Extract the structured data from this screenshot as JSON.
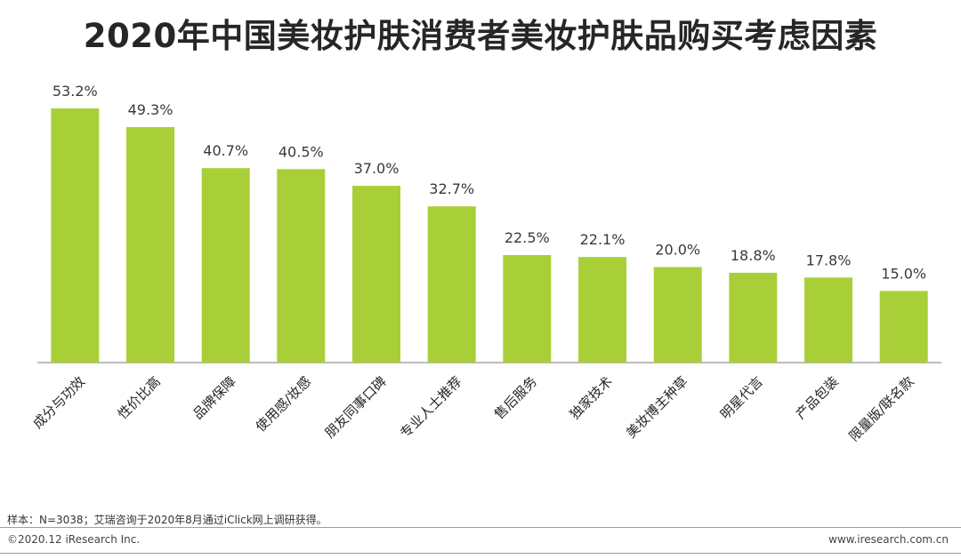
{
  "title": "2020年中国美妆护肤消费者美妆护肤品购买考虑因素",
  "chart_data": {
    "type": "bar",
    "categories": [
      "成分与功效",
      "性价比高",
      "品牌保障",
      "使用感/妆感",
      "朋友同事口碑",
      "专业人士推荐",
      "售后服务",
      "独家技术",
      "美妆博主种草",
      "明星代言",
      "产品包装",
      "限量版/联名款"
    ],
    "values": [
      53.2,
      49.3,
      40.7,
      40.5,
      37.0,
      32.7,
      22.5,
      22.1,
      20.0,
      18.8,
      17.8,
      15.0
    ],
    "value_labels": [
      "53.2%",
      "49.3%",
      "40.7%",
      "40.5%",
      "37.0%",
      "32.7%",
      "22.5%",
      "22.1%",
      "20.0%",
      "18.8%",
      "17.8%",
      "15.0%"
    ],
    "unit": "%",
    "ylim": [
      0,
      53.2
    ],
    "grid": false,
    "bar_color": "#a9cf38",
    "axis_color": "#a6a6a6"
  },
  "footer": {
    "note": "样本：N=3038；艾瑞咨询于2020年8月通过iClick网上调研获得。",
    "copyright": "©2020.12 iResearch Inc.",
    "site": "www.iresearch.com.cn"
  }
}
